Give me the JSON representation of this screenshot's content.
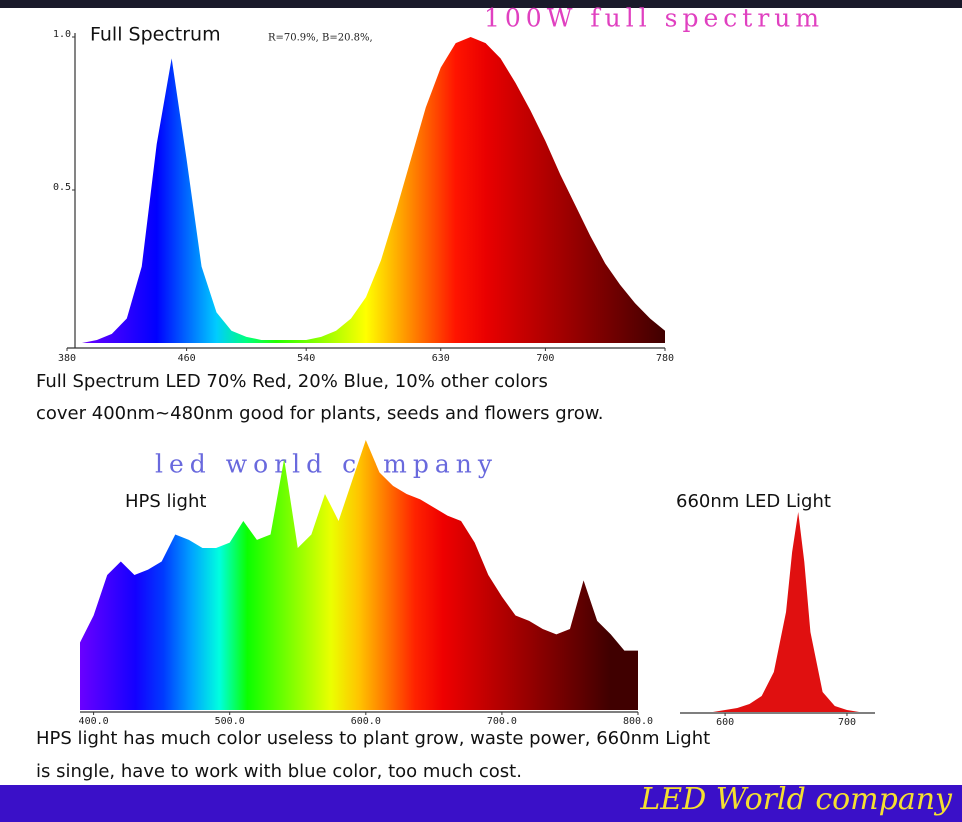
{
  "banner": "100W full spectrum",
  "watermark": "led world company",
  "captions": [
    "Full Spectrum LED 70% Red, 20% Blue, 10% other colors",
    "cover 400nm~480nm good for plants, seeds and flowers grow.",
    "HPS light has much color useless to plant grow, waste power, 660nm Light",
    "is single, have to work with blue color, too much cost."
  ],
  "footer": "LED World company",
  "chart_data": [
    {
      "type": "area",
      "title": "Full Spectrum",
      "subtitle": "R=70.9%, B=20.8%,",
      "x": [
        380,
        390,
        400,
        410,
        420,
        430,
        440,
        450,
        460,
        470,
        480,
        490,
        500,
        510,
        520,
        530,
        540,
        550,
        560,
        570,
        580,
        590,
        600,
        610,
        620,
        630,
        640,
        650,
        660,
        670,
        680,
        690,
        700,
        710,
        720,
        730,
        740,
        750,
        760,
        770,
        780
      ],
      "values": [
        0,
        0,
        0.01,
        0.03,
        0.08,
        0.25,
        0.65,
        0.93,
        0.6,
        0.25,
        0.1,
        0.04,
        0.02,
        0.01,
        0.01,
        0.01,
        0.01,
        0.02,
        0.04,
        0.08,
        0.15,
        0.27,
        0.43,
        0.6,
        0.77,
        0.9,
        0.98,
        1.0,
        0.98,
        0.93,
        0.85,
        0.76,
        0.66,
        0.55,
        0.45,
        0.35,
        0.26,
        0.19,
        0.13,
        0.08,
        0.04
      ],
      "xlim": [
        380,
        780
      ],
      "xticks": [
        380,
        460,
        540,
        630,
        700,
        780
      ],
      "ylim": [
        0,
        1
      ],
      "yticks": [
        0.5,
        {
          "value": 1,
          "label": "1.0"
        }
      ]
    },
    {
      "type": "area",
      "title": "HPS light",
      "x": [
        390,
        400,
        410,
        420,
        430,
        440,
        450,
        460,
        470,
        480,
        490,
        500,
        510,
        520,
        530,
        540,
        550,
        560,
        570,
        580,
        590,
        600,
        610,
        620,
        630,
        640,
        650,
        660,
        670,
        680,
        690,
        700,
        710,
        720,
        730,
        740,
        750,
        760,
        770,
        780,
        790,
        800
      ],
      "values": [
        0.25,
        0.35,
        0.5,
        0.55,
        0.5,
        0.52,
        0.55,
        0.65,
        0.63,
        0.6,
        0.6,
        0.62,
        0.7,
        0.63,
        0.65,
        0.93,
        0.6,
        0.65,
        0.8,
        0.7,
        0.85,
        1.0,
        0.88,
        0.83,
        0.8,
        0.78,
        0.75,
        0.72,
        0.7,
        0.62,
        0.5,
        0.42,
        0.35,
        0.33,
        0.3,
        0.28,
        0.3,
        0.48,
        0.33,
        0.28,
        0.22,
        0.22
      ],
      "xlim": [
        390,
        800
      ],
      "xticks": [
        {
          "value": 400,
          "label": "400.0"
        },
        {
          "value": 500,
          "label": "500.0"
        },
        {
          "value": 600,
          "label": "600.0"
        },
        {
          "value": 700,
          "label": "700.0"
        },
        {
          "value": 800,
          "label": "800.0"
        }
      ],
      "ylim": [
        0,
        1
      ]
    },
    {
      "type": "area",
      "title": "660nm LED Light",
      "color": "#e01010",
      "x": [
        590,
        600,
        610,
        620,
        630,
        640,
        650,
        655,
        660,
        665,
        670,
        680,
        690,
        700,
        710
      ],
      "values": [
        0,
        0.01,
        0.02,
        0.04,
        0.08,
        0.2,
        0.5,
        0.8,
        1.0,
        0.75,
        0.4,
        0.1,
        0.03,
        0.01,
        0
      ],
      "xlim": [
        563,
        723
      ],
      "xticks": [
        600,
        700
      ],
      "ylim": [
        0,
        1
      ]
    }
  ]
}
